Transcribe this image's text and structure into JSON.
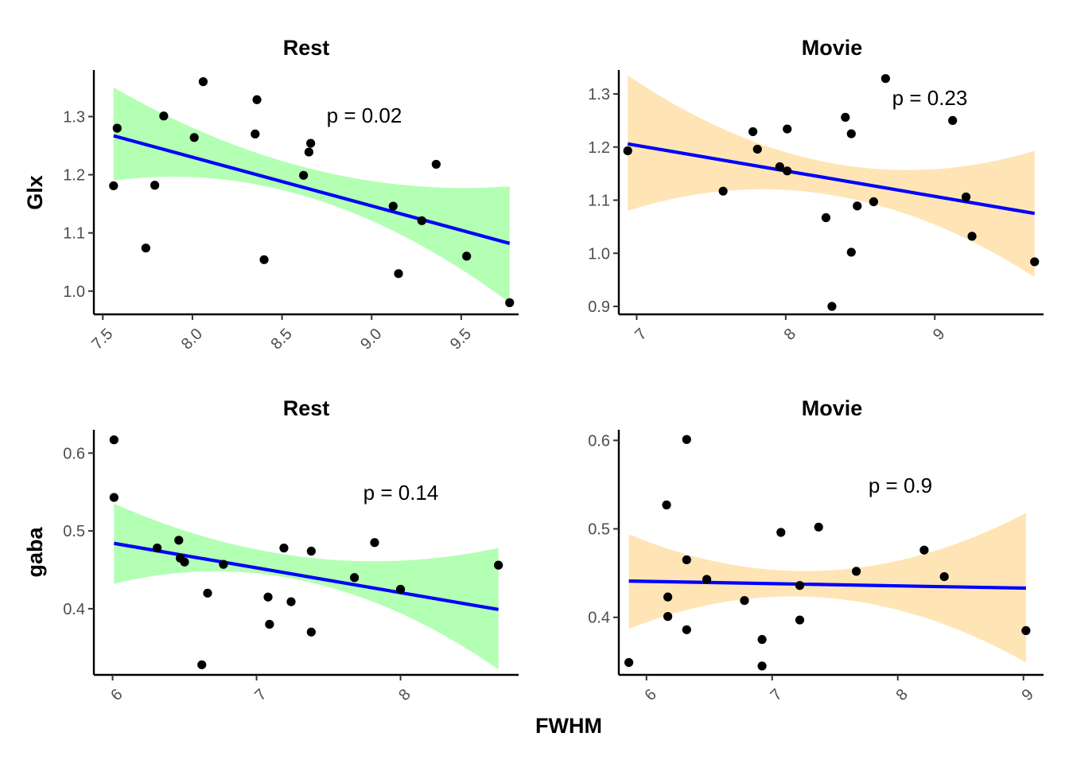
{
  "figure": {
    "xlabel": "FWHM"
  },
  "colors": {
    "fit_line": "#0000ff",
    "points": "#000000",
    "ribbon_rest": "#b3ffb3",
    "ribbon_movie": "#ffe4b5"
  },
  "chart_data": [
    {
      "type": "scatter",
      "title": "Rest",
      "ylabel": "Glx",
      "xlim": [
        7.45,
        9.82
      ],
      "ylim": [
        0.96,
        1.38
      ],
      "xticks": [
        "7.5",
        "8.0",
        "8.5",
        "9.0",
        "9.5"
      ],
      "yticks": [
        "1.0",
        "1.1",
        "1.2",
        "1.3"
      ],
      "annotation": "p =  0.02",
      "ribbon_color": "#b3ffb3",
      "fit": {
        "x": [
          7.56,
          9.77
        ],
        "y": [
          1.267,
          1.082
        ]
      },
      "ribbon": {
        "x": [
          7.56,
          8.66,
          9.77
        ],
        "upper": [
          1.35,
          1.21,
          1.18
        ],
        "lower": [
          1.19,
          1.16,
          0.98
        ]
      },
      "points": [
        [
          7.56,
          1.181
        ],
        [
          7.58,
          1.28
        ],
        [
          7.74,
          1.074
        ],
        [
          7.79,
          1.182
        ],
        [
          7.84,
          1.301
        ],
        [
          8.01,
          1.264
        ],
        [
          8.06,
          1.36
        ],
        [
          8.35,
          1.27
        ],
        [
          8.36,
          1.329
        ],
        [
          8.4,
          1.054
        ],
        [
          8.62,
          1.199
        ],
        [
          8.65,
          1.239
        ],
        [
          8.66,
          1.254
        ],
        [
          9.12,
          1.146
        ],
        [
          9.15,
          1.03
        ],
        [
          9.28,
          1.121
        ],
        [
          9.36,
          1.218
        ],
        [
          9.53,
          1.06
        ],
        [
          9.77,
          0.98
        ]
      ]
    },
    {
      "type": "scatter",
      "title": "Movie",
      "ylabel": "",
      "xlim": [
        6.88,
        9.73
      ],
      "ylim": [
        0.885,
        1.345
      ],
      "xticks": [
        "7",
        "8",
        "9"
      ],
      "yticks": [
        "0.9",
        "1.0",
        "1.1",
        "1.2",
        "1.3"
      ],
      "annotation": "p =  0.23",
      "ribbon_color": "#ffe4b5",
      "fit": {
        "x": [
          6.94,
          9.67
        ],
        "y": [
          1.206,
          1.075
        ]
      },
      "ribbon": {
        "x": [
          6.94,
          8.3,
          9.67
        ],
        "upper": [
          1.335,
          1.17,
          1.193
        ],
        "lower": [
          1.08,
          1.11,
          0.955
        ]
      },
      "points": [
        [
          6.94,
          1.193
        ],
        [
          7.58,
          1.117
        ],
        [
          7.78,
          1.229
        ],
        [
          7.81,
          1.196
        ],
        [
          7.96,
          1.163
        ],
        [
          8.01,
          1.234
        ],
        [
          8.01,
          1.155
        ],
        [
          8.27,
          1.067
        ],
        [
          8.31,
          0.9
        ],
        [
          8.4,
          1.256
        ],
        [
          8.44,
          1.225
        ],
        [
          8.44,
          1.002
        ],
        [
          8.48,
          1.089
        ],
        [
          8.59,
          1.097
        ],
        [
          8.67,
          1.329
        ],
        [
          9.12,
          1.25
        ],
        [
          9.21,
          1.106
        ],
        [
          9.25,
          1.032
        ],
        [
          9.67,
          0.984
        ]
      ]
    },
    {
      "type": "scatter",
      "title": "Rest",
      "ylabel": "gaba",
      "xlim": [
        5.87,
        8.82
      ],
      "ylim": [
        0.315,
        0.63
      ],
      "xticks": [
        "6",
        "7",
        "8"
      ],
      "yticks": [
        "0.4",
        "0.5",
        "0.6"
      ],
      "annotation": "p =  0.14",
      "ribbon_color": "#b3ffb3",
      "fit": {
        "x": [
          6.01,
          8.68
        ],
        "y": [
          0.484,
          0.399
        ]
      },
      "ribbon": {
        "x": [
          6.01,
          7.35,
          8.68
        ],
        "upper": [
          0.535,
          0.466,
          0.478
        ],
        "lower": [
          0.432,
          0.435,
          0.322
        ]
      },
      "points": [
        [
          6.01,
          0.617
        ],
        [
          6.01,
          0.543
        ],
        [
          6.31,
          0.478
        ],
        [
          6.46,
          0.488
        ],
        [
          6.47,
          0.465
        ],
        [
          6.5,
          0.46
        ],
        [
          6.62,
          0.328
        ],
        [
          6.66,
          0.42
        ],
        [
          6.77,
          0.457
        ],
        [
          7.08,
          0.415
        ],
        [
          7.09,
          0.38
        ],
        [
          7.19,
          0.478
        ],
        [
          7.24,
          0.409
        ],
        [
          7.38,
          0.474
        ],
        [
          7.38,
          0.37
        ],
        [
          7.68,
          0.44
        ],
        [
          7.82,
          0.485
        ],
        [
          8.0,
          0.425
        ],
        [
          8.68,
          0.456
        ]
      ]
    },
    {
      "type": "scatter",
      "title": "Movie",
      "ylabel": "",
      "xlim": [
        5.78,
        9.16
      ],
      "ylim": [
        0.335,
        0.612
      ],
      "xticks": [
        "6",
        "7",
        "8",
        "9"
      ],
      "yticks": [
        "0.4",
        "0.5",
        "0.6"
      ],
      "annotation": "p =  0.9",
      "ribbon_color": "#ffe4b5",
      "fit": {
        "x": [
          5.86,
          9.02
        ],
        "y": [
          0.441,
          0.433
        ]
      },
      "ribbon": {
        "x": [
          5.86,
          7.44,
          9.02
        ],
        "upper": [
          0.494,
          0.453,
          0.518
        ],
        "lower": [
          0.387,
          0.422,
          0.349
        ]
      },
      "points": [
        [
          5.86,
          0.349
        ],
        [
          6.16,
          0.527
        ],
        [
          6.17,
          0.423
        ],
        [
          6.17,
          0.401
        ],
        [
          6.32,
          0.601
        ],
        [
          6.32,
          0.465
        ],
        [
          6.32,
          0.386
        ],
        [
          6.48,
          0.443
        ],
        [
          6.78,
          0.419
        ],
        [
          6.92,
          0.375
        ],
        [
          6.92,
          0.345
        ],
        [
          7.07,
          0.496
        ],
        [
          7.22,
          0.436
        ],
        [
          7.22,
          0.397
        ],
        [
          7.37,
          0.502
        ],
        [
          7.67,
          0.452
        ],
        [
          8.21,
          0.476
        ],
        [
          8.37,
          0.446
        ],
        [
          9.02,
          0.385
        ]
      ]
    }
  ]
}
